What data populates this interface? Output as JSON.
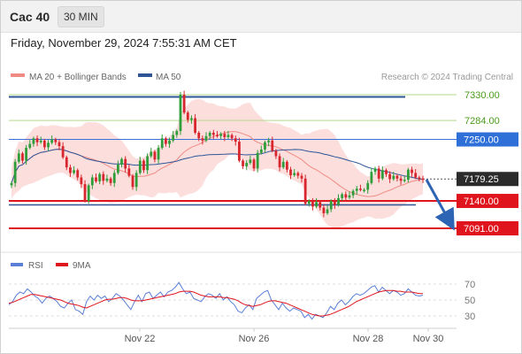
{
  "header": {
    "instrument": "Cac 40",
    "timeframe": "30 MIN"
  },
  "datetime": "Friday, November 29, 2024 7:55:31 AM CET",
  "legend": {
    "ma20": "MA 20 + Bollinger Bands",
    "ma50": "MA 50",
    "ma20_color": "#f08a84",
    "ma50_color": "#2f5597"
  },
  "credit": "Research © 2024 Trading Central",
  "rsi_legend": {
    "rsi": "RSI",
    "ma9": "9MA",
    "rsi_color": "#5b7fd6",
    "ma9_color": "#e0141c"
  },
  "levels": [
    {
      "label": "7330.00",
      "style": "green-text",
      "value": 7330.0
    },
    {
      "label": "7284.00",
      "style": "green-text",
      "value": 7284.0
    },
    {
      "label": "7250.00",
      "style": "blue-box",
      "value": 7250.0
    },
    {
      "label": "7179.25",
      "style": "dark-box",
      "value": 7179.25
    },
    {
      "label": "7140.00",
      "style": "red-box",
      "value": 7140.0
    },
    {
      "label": "7091.00",
      "style": "red-box",
      "value": 7091.0
    }
  ],
  "rsi_ticks": [
    "70",
    "50",
    "30"
  ],
  "x_labels": [
    "Nov 22",
    "Nov 26",
    "Nov 28",
    "Nov 30"
  ],
  "chart_data": {
    "type": "candlestick",
    "instrument": "Cac 40",
    "timeframe": "30 MIN",
    "y_range": [
      7070,
      7345
    ],
    "x_labels": [
      "Nov 22",
      "Nov 26",
      "Nov 28",
      "Nov 30"
    ],
    "levels": [
      7330.0,
      7284.0,
      7250.0,
      7140.0,
      7091.0
    ],
    "last_price": 7179.25,
    "resistance_line": 7326,
    "support_line": 7133,
    "forecast_target": 7091.0,
    "close": [
      7172,
      7210,
      7225,
      7212,
      7235,
      7242,
      7252,
      7245,
      7248,
      7236,
      7244,
      7250,
      7245,
      7238,
      7218,
      7200,
      7190,
      7195,
      7182,
      7170,
      7140,
      7168,
      7182,
      7175,
      7188,
      7176,
      7180,
      7172,
      7190,
      7205,
      7215,
      7198,
      7185,
      7165,
      7190,
      7212,
      7195,
      7220,
      7228,
      7214,
      7235,
      7252,
      7242,
      7248,
      7258,
      7265,
      7330,
      7298,
      7285,
      7288,
      7262,
      7252,
      7248,
      7256,
      7262,
      7258,
      7256,
      7260,
      7254,
      7258,
      7252,
      7246,
      7212,
      7202,
      7208,
      7214,
      7198,
      7226,
      7232,
      7245,
      7248,
      7230,
      7220,
      7200,
      7210,
      7196,
      7186,
      7190,
      7185,
      7180,
      7135,
      7140,
      7130,
      7138,
      7128,
      7118,
      7125,
      7140,
      7133,
      7145,
      7152,
      7146,
      7150,
      7158,
      7162,
      7160,
      7160,
      7172,
      7192,
      7198,
      7180,
      7195,
      7188,
      7179,
      7185,
      7180,
      7176,
      7178,
      7196,
      7190,
      7182,
      7180,
      7179
    ],
    "rsi_range": [
      20,
      80
    ],
    "rsi_ticks": [
      70,
      50,
      30
    ],
    "rsi": [
      44,
      48,
      56,
      60,
      58,
      64,
      60,
      55,
      52,
      46,
      52,
      55,
      52,
      48,
      42,
      40,
      46,
      50,
      38,
      36,
      32,
      48,
      55,
      50,
      56,
      52,
      55,
      48,
      52,
      58,
      55,
      50,
      44,
      38,
      48,
      56,
      48,
      58,
      60,
      52,
      56,
      60,
      54,
      60,
      62,
      66,
      72,
      64,
      58,
      60,
      52,
      50,
      48,
      54,
      58,
      56,
      52,
      58,
      50,
      54,
      48,
      44,
      36,
      34,
      40,
      44,
      38,
      52,
      56,
      60,
      62,
      50,
      44,
      38,
      46,
      40,
      36,
      40,
      38,
      36,
      28,
      32,
      26,
      32,
      30,
      28,
      34,
      42,
      38,
      46,
      50,
      44,
      48,
      54,
      58,
      56,
      58,
      62,
      66,
      68,
      60,
      66,
      62,
      58,
      62,
      60,
      56,
      58,
      64,
      60,
      56,
      55,
      56
    ],
    "ma9": [
      46,
      47,
      49,
      51,
      53,
      55,
      57,
      57,
      56,
      55,
      54,
      53,
      52,
      51,
      50,
      48,
      46,
      45,
      44,
      43,
      41,
      40,
      42,
      44,
      46,
      48,
      50,
      51,
      51,
      52,
      53,
      53,
      52,
      50,
      49,
      49,
      49,
      50,
      51,
      52,
      53,
      54,
      55,
      56,
      57,
      58,
      60,
      61,
      61,
      61,
      60,
      58,
      56,
      55,
      54,
      54,
      54,
      54,
      53,
      53,
      52,
      51,
      49,
      46,
      44,
      43,
      42,
      43,
      44,
      46,
      48,
      49,
      49,
      48,
      47,
      46,
      44,
      42,
      40,
      38,
      36,
      34,
      32,
      31,
      30,
      30,
      31,
      32,
      34,
      36,
      38,
      40,
      42,
      45,
      48,
      50,
      52,
      54,
      56,
      58,
      60,
      61,
      62,
      62,
      62,
      61,
      61,
      60,
      60,
      60,
      59,
      58,
      58
    ]
  }
}
